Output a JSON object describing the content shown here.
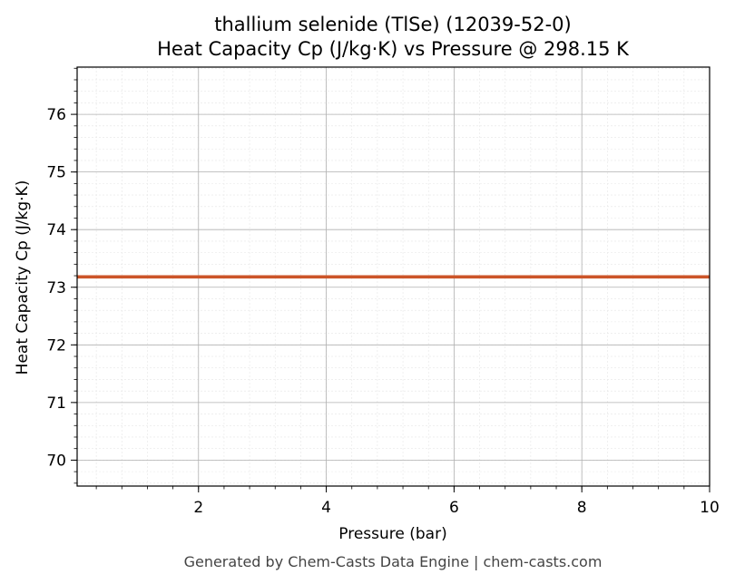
{
  "chart_data": {
    "type": "line",
    "title_line1": "thallium selenide (TlSe) (12039-52-0)",
    "title_line2": "Heat Capacity Cp (J/kg·K) vs Pressure @ 298.15 K",
    "xlabel": "Pressure (bar)",
    "ylabel": "Heat Capacity Cp (J/kg·K)",
    "xlim": [
      0.1,
      10
    ],
    "ylim": [
      69.55,
      76.82
    ],
    "x_ticks": [
      2,
      4,
      6,
      8,
      10
    ],
    "y_ticks": [
      70,
      71,
      72,
      73,
      74,
      75,
      76
    ],
    "grid": true,
    "series": [
      {
        "color": "#cc5529",
        "x": [
          0.1,
          10
        ],
        "y": [
          73.18,
          73.18
        ]
      }
    ]
  },
  "footer": "Generated by Chem-Casts Data Engine | chem-casts.com"
}
